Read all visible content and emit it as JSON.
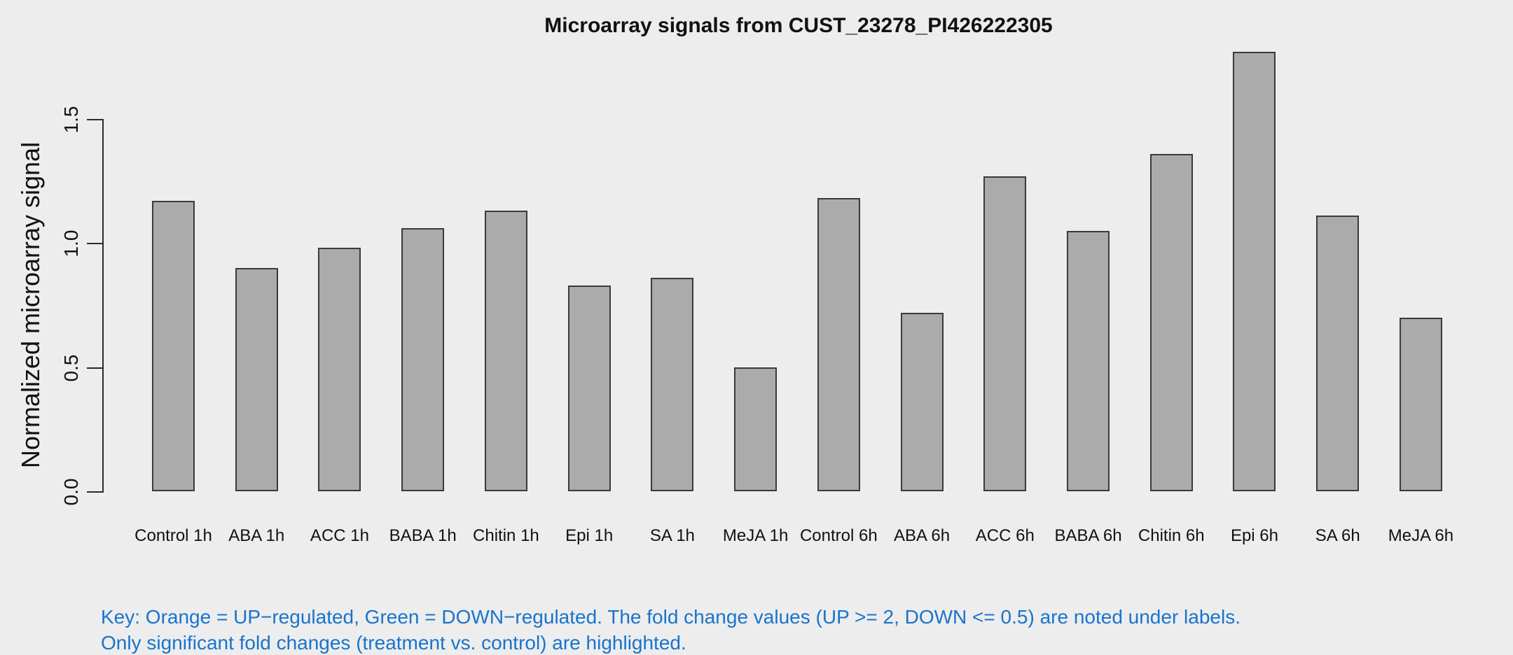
{
  "title": "Microarray signals from CUST_23278_PI426222305",
  "chart_data": {
    "type": "bar",
    "title": "Microarray signals from CUST_23278_PI426222305",
    "xlabel": "",
    "ylabel": "Normalized microarray signal",
    "categories": [
      "Control 1h",
      "ABA 1h",
      "ACC 1h",
      "BABA 1h",
      "Chitin 1h",
      "Epi 1h",
      "SA 1h",
      "MeJA 1h",
      "Control 6h",
      "ABA 6h",
      "ACC 6h",
      "BABA 6h",
      "Chitin 6h",
      "Epi 6h",
      "SA 6h",
      "MeJA 6h"
    ],
    "values": [
      1.17,
      0.9,
      0.98,
      1.06,
      1.13,
      0.83,
      0.86,
      0.5,
      1.18,
      0.72,
      1.27,
      1.05,
      1.36,
      1.77,
      1.11,
      0.7
    ],
    "yticks": [
      0.0,
      0.5,
      1.0,
      1.5
    ],
    "ytick_labels": [
      "0.0",
      "0.5",
      "1.0",
      "1.5"
    ],
    "ylim": [
      0,
      1.9
    ],
    "grid": false,
    "legend": "none",
    "bar_fill": "#ABABAB",
    "bar_border": "#3a3a3a",
    "background": "#EDEDED"
  },
  "footnote": {
    "line1": "Key: Orange = UP−regulated, Green = DOWN−regulated. The fold change values (UP >= 2, DOWN <= 0.5) are noted under labels.",
    "line2": "Only significant fold changes (treatment vs. control) are highlighted.",
    "color": "#1874CD"
  }
}
